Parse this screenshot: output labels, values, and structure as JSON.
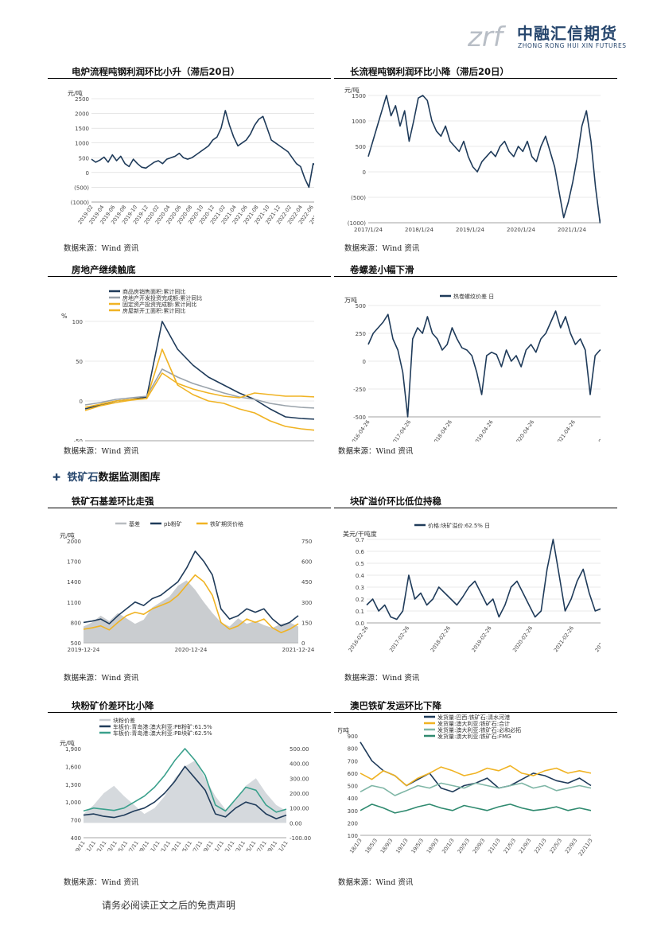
{
  "header": {
    "logo_cn": "中融汇信期货",
    "logo_en": "ZHONG RONG HUI XIN FUTURES",
    "logo_mark_text": "zrf"
  },
  "section": {
    "title_blue": "铁矿石",
    "title_rest": "数据监测图库"
  },
  "footer": {
    "disclaimer": "请务必阅读正文之后的免责声明"
  },
  "charts": [
    {
      "id": "c1",
      "title": "电炉流程吨钢利润环比小升（滞后20日）",
      "source": "数据来源：Wind 资讯",
      "chart_data": {
        "type": "line",
        "unit": "元/吨",
        "y_ticks": [
          "2500",
          "2000",
          "1500",
          "1000",
          "500",
          "0",
          "(500)",
          "(1000)"
        ],
        "ylim": [
          -1000,
          2500
        ],
        "x_labels": [
          "2019-02",
          "2019-04",
          "2019-06",
          "2019-08",
          "2019-10",
          "2019-12",
          "2020-02",
          "2020-04",
          "2020-06",
          "2020-08",
          "2020-10",
          "2020-12",
          "2021-02",
          "2021-04",
          "2021-06",
          "2021-08",
          "2021-10",
          "2021-12",
          "2022-02",
          "2022-04",
          "2022-06",
          "2022-08",
          "2022-10"
        ],
        "series": [
          {
            "color": "#1f3b5a",
            "values": [
              450,
              350,
              420,
              520,
              350,
              600,
              400,
              550,
              300,
              200,
              450,
              300,
              180,
              150,
              250,
              350,
              400,
              300,
              450,
              500,
              550,
              650,
              500,
              450,
              500,
              600,
              700,
              800,
              900,
              1100,
              1200,
              1500,
              2100,
              1600,
              1200,
              900,
              1000,
              1100,
              1300,
              1600,
              1800,
              1900,
              1500,
              1100,
              1000,
              900,
              800,
              700,
              500,
              300,
              200,
              -200,
              -500,
              300,
              200,
              400,
              100,
              300,
              500
            ]
          }
        ],
        "grid": true
      }
    },
    {
      "id": "c2",
      "title": "长流程吨钢利润环比小降（滞后20日）",
      "source": "数据来源：Wind 资讯",
      "chart_data": {
        "type": "line",
        "unit": "元/吨",
        "y_ticks": [
          "1500",
          "1000",
          "500",
          "0",
          "(500)",
          "(1000)"
        ],
        "ylim": [
          -1000,
          1500
        ],
        "x_labels": [
          "2017/1/24",
          "2018/1/24",
          "2019/1/24",
          "2020/1/24",
          "2021/1/24",
          "2022/1/24"
        ],
        "series": [
          {
            "color": "#1f3b5a",
            "values": [
              300,
              600,
              900,
              1200,
              1500,
              1100,
              1300,
              900,
              1200,
              600,
              1000,
              1450,
              1500,
              1400,
              1000,
              800,
              700,
              900,
              600,
              500,
              400,
              600,
              300,
              100,
              0,
              200,
              300,
              400,
              300,
              500,
              600,
              400,
              300,
              500,
              400,
              600,
              300,
              200,
              500,
              700,
              400,
              100,
              -400,
              -900,
              -600,
              -200,
              300,
              900,
              1200,
              600,
              -300,
              -1000,
              -700,
              -200,
              0,
              -300,
              -100
            ]
          }
        ],
        "grid": true
      }
    },
    {
      "id": "c3",
      "title": "房地产继续触底",
      "source": "数据来源：Wind 资讯",
      "chart_data": {
        "type": "line",
        "unit": "%",
        "y_ticks": [
          "100",
          "50",
          "0",
          "-50"
        ],
        "ylim": [
          -50,
          100
        ],
        "x_labels": [
          "2020-05",
          "2020-07",
          "2020-09",
          "2020-11",
          "2021-01",
          "2021-03",
          "2021-05",
          "2021-07",
          "2021-09",
          "2021-11",
          "2022-01",
          "2022-03",
          "2022-05",
          "2022-07",
          "2022-09",
          "2022-11"
        ],
        "series": [
          {
            "name": "商品房销售面积:累计同比",
            "color": "#1f3b5a",
            "values": [
              -10,
              -5,
              0,
              2,
              5,
              100,
              65,
              45,
              30,
              20,
              10,
              2,
              -10,
              -20,
              -22,
              -23,
              -25
            ]
          },
          {
            "name": "房地产开发投资完成额:累计同比",
            "color": "#9aa3ab",
            "values": [
              -5,
              -2,
              2,
              4,
              6,
              40,
              30,
              22,
              16,
              10,
              5,
              2,
              -3,
              -6,
              -8,
              -9,
              -10
            ]
          },
          {
            "name": "固定资产投资完成额:累计同比",
            "color": "#f0b323",
            "values": [
              -8,
              -4,
              0,
              2,
              3,
              35,
              22,
              15,
              10,
              6,
              4,
              10,
              8,
              6,
              6,
              5,
              5
            ]
          },
          {
            "name": "房屋新开工面积:累计同比",
            "color": "#f0b323",
            "values": [
              -12,
              -6,
              -2,
              1,
              3,
              65,
              20,
              8,
              0,
              -3,
              -10,
              -15,
              -25,
              -32,
              -35,
              -37,
              -38
            ]
          }
        ],
        "legend_position": "top-left",
        "grid": true
      }
    },
    {
      "id": "c4",
      "title": "卷螺差小幅下滑",
      "source": "数据来源：Wind 资讯",
      "chart_data": {
        "type": "line",
        "unit": "万吨",
        "y_ticks": [
          "500",
          "250",
          "0",
          "-250",
          "-500"
        ],
        "ylim": [
          -500,
          500
        ],
        "x_labels": [
          "2016-04-26",
          "2017-04-26",
          "2018-04-26",
          "2019-04-26",
          "2020-04-26",
          "2021-04-26",
          "2022-04-26"
        ],
        "series": [
          {
            "name": "热卷螺纹价差 日",
            "color": "#1f3b5a",
            "values": [
              150,
              250,
              300,
              350,
              420,
              200,
              100,
              -100,
              -500,
              200,
              300,
              250,
              400,
              250,
              200,
              100,
              150,
              300,
              200,
              120,
              100,
              50,
              -100,
              -300,
              50,
              80,
              60,
              -50,
              100,
              0,
              50,
              -50,
              100,
              150,
              80,
              200,
              250,
              350,
              450,
              300,
              400,
              250,
              150,
              200,
              100,
              -300,
              50,
              100,
              80,
              60,
              100
            ]
          }
        ],
        "legend_position": "top-center",
        "grid": true
      }
    },
    {
      "id": "c5",
      "title": "铁矿石基差环比走强",
      "source": "数据来源：Wind 资讯",
      "chart_data": {
        "type": "line",
        "unit": "元/吨",
        "y_ticks": [
          "2000",
          "1700",
          "1400",
          "1100",
          "800",
          "500"
        ],
        "y2_ticks": [
          "750",
          "600",
          "450",
          "300",
          "150",
          "0"
        ],
        "ylim": [
          500,
          2000
        ],
        "y2lim": [
          0,
          750
        ],
        "x_labels": [
          "2019-12-24",
          "2020-12-24",
          "2021-12-24"
        ],
        "series": [
          {
            "name": "基差",
            "color": "#b8bcc0",
            "axis": "right",
            "values": [
              120,
              150,
              200,
              160,
              220,
              180,
              140,
              170,
              260,
              300,
              340,
              420,
              460,
              390,
              300,
              220,
              150,
              120,
              180,
              140,
              160,
              130,
              110,
              140,
              150,
              120
            ]
          },
          {
            "name": "pb粉矿",
            "color": "#1f3b5a",
            "axis": "left",
            "values": [
              800,
              820,
              850,
              780,
              900,
              1000,
              1100,
              1050,
              1150,
              1200,
              1300,
              1400,
              1600,
              1850,
              1700,
              1500,
              1000,
              850,
              900,
              1000,
              950,
              1000,
              850,
              750,
              800,
              900
            ]
          },
          {
            "name": "铁矿期货价格",
            "color": "#f0b323",
            "axis": "left",
            "values": [
              700,
              720,
              750,
              690,
              800,
              900,
              950,
              920,
              1000,
              1050,
              1100,
              1200,
              1350,
              1500,
              1400,
              1200,
              800,
              700,
              750,
              850,
              800,
              850,
              720,
              650,
              700,
              780
            ]
          }
        ],
        "legend_position": "top-center"
      }
    },
    {
      "id": "c6",
      "title": "块矿溢价环比低位持稳",
      "source": "数据来源：Wind 资讯",
      "chart_data": {
        "type": "line",
        "unit": "美元/干吨度",
        "y_ticks": [
          "0.7",
          "0.6",
          "0.5",
          "0.4",
          "0.3",
          "0.2",
          "0.1",
          "0.0"
        ],
        "ylim": [
          0,
          0.7
        ],
        "x_labels": [
          "2016-02-26",
          "2017-02-26",
          "2018-02-26",
          "2019-02-26",
          "2020-02-26",
          "2021-02-26",
          "2022-02-26"
        ],
        "series": [
          {
            "name": "价格:块矿溢价:62.5% 日",
            "color": "#1f3b5a",
            "values": [
              0.15,
              0.2,
              0.1,
              0.15,
              0.05,
              0.03,
              0.1,
              0.4,
              0.2,
              0.25,
              0.15,
              0.2,
              0.3,
              0.25,
              0.2,
              0.15,
              0.22,
              0.3,
              0.35,
              0.25,
              0.15,
              0.2,
              0.05,
              0.15,
              0.3,
              0.35,
              0.25,
              0.15,
              0.05,
              0.1,
              0.45,
              0.7,
              0.4,
              0.1,
              0.2,
              0.35,
              0.45,
              0.25,
              0.1,
              0.12,
              0.2,
              0.15
            ]
          }
        ],
        "legend_position": "top-center",
        "grid": true
      }
    },
    {
      "id": "c7",
      "title": "块粉矿价差环比小降",
      "source": "数据来源：Wind 资讯",
      "chart_data": {
        "type": "area",
        "unit": "元/吨",
        "y_ticks": [
          "1,900",
          "1,600",
          "1,300",
          "1,000",
          "700",
          "400"
        ],
        "y2_ticks": [
          "500.00",
          "400.00",
          "300.00",
          "200.00",
          "100.00",
          "0.00",
          "-100.00"
        ],
        "ylim": [
          400,
          1900
        ],
        "y2lim": [
          -100,
          500
        ],
        "x_labels": [
          "19/9/11",
          "19/11/11",
          "20/1/11",
          "20/3/11",
          "20/5/11",
          "20/7/11",
          "20/9/11",
          "20/11/11",
          "21/1/11",
          "21/3/11",
          "21/5/11",
          "21/7/11",
          "21/9/11",
          "21/11/11",
          "22/1/11",
          "22/3/11",
          "22/5/11",
          "22/7/11",
          "22/9/11",
          "22/11/11"
        ],
        "series": [
          {
            "name": "块粉价差",
            "color": "#c7ccd1",
            "axis": "right",
            "values": [
              60,
              120,
              200,
              250,
              180,
              120,
              60,
              100,
              180,
              300,
              380,
              420,
              300,
              180,
              90,
              150,
              250,
              300,
              200,
              120,
              80
            ]
          },
          {
            "name": "车板价:青岛港:澳大利亚:PB粉矿:61.5%",
            "color": "#1f3b5a",
            "axis": "left",
            "values": [
              780,
              800,
              760,
              740,
              780,
              850,
              900,
              1000,
              1150,
              1350,
              1600,
              1400,
              1200,
              800,
              750,
              900,
              1000,
              950,
              800,
              720,
              780
            ]
          },
          {
            "name": "车板价:青岛港:澳大利亚:PB块矿:62.5%",
            "color": "#3aa08c",
            "axis": "left",
            "values": [
              850,
              900,
              880,
              860,
              900,
              1000,
              1100,
              1250,
              1450,
              1700,
              1900,
              1700,
              1450,
              950,
              850,
              1050,
              1250,
              1200,
              950,
              830,
              880
            ]
          }
        ],
        "legend_position": "top-left"
      }
    },
    {
      "id": "c8",
      "title": "澳巴铁矿发运环比下降",
      "source": "数据来源：Wind 资讯",
      "chart_data": {
        "type": "line",
        "unit": "万吨",
        "y_ticks": [
          "900",
          "800",
          "700",
          "600",
          "500",
          "400",
          "300",
          "200",
          "100"
        ],
        "ylim": [
          100,
          900
        ],
        "x_labels": [
          "18/1/3",
          "18/5/3",
          "18/9/3",
          "19/1/3",
          "19/5/3",
          "19/9/3",
          "20/1/3",
          "20/5/3",
          "20/9/3",
          "21/1/3",
          "21/5/3",
          "21/9/3",
          "22/1/3",
          "22/5/3",
          "22/9/3",
          "22/11/3"
        ],
        "series": [
          {
            "name": "发货量:巴西:铁矿石:清水河港",
            "color": "#1f3b5a",
            "values": [
              850,
              700,
              620,
              580,
              500,
              550,
              600,
              480,
              450,
              500,
              520,
              560,
              480,
              500,
              550,
              600,
              580,
              540,
              520,
              560,
              500
            ]
          },
          {
            "name": "发货量:澳大利亚:铁矿石:合计",
            "color": "#f0b323",
            "values": [
              600,
              550,
              620,
              580,
              500,
              560,
              600,
              650,
              620,
              580,
              600,
              640,
              620,
              660,
              600,
              580,
              620,
              640,
              600,
              620,
              600
            ]
          },
          {
            "name": "发货量:澳大利亚:铁矿石:必和必拓",
            "color": "#7fb6a6",
            "values": [
              450,
              500,
              480,
              420,
              460,
              500,
              480,
              520,
              500,
              480,
              520,
              500,
              480,
              500,
              520,
              480,
              500,
              460,
              480,
              500,
              480
            ]
          },
          {
            "name": "发货量:澳大利亚:铁矿石:FMG",
            "color": "#2f8a6f",
            "values": [
              300,
              350,
              320,
              280,
              300,
              330,
              350,
              320,
              300,
              340,
              320,
              300,
              330,
              350,
              320,
              300,
              310,
              330,
              300,
              320,
              300
            ]
          }
        ],
        "legend_position": "top-center"
      }
    }
  ]
}
